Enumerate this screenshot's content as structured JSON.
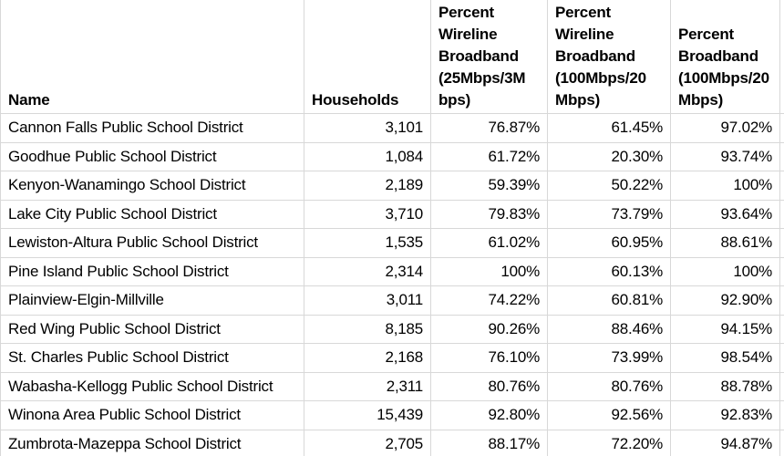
{
  "table": {
    "headers": {
      "name": "Name",
      "households": "Households",
      "pct_wireline_25_3": "Percent\nWireline\nBroadband\n(25Mbps/3M\nbps)",
      "pct_wireline_100_20": "Percent\nWireline\nBroadband\n(100Mbps/20\nMbps)",
      "pct_broadband_100_20": "Percent\nBroadband\n(100Mbps/20\nMbps)"
    },
    "rows": [
      {
        "name": "Cannon Falls Public School District",
        "households": "3,101",
        "pct_wireline_25_3": "76.87%",
        "pct_wireline_100_20": "61.45%",
        "pct_broadband_100_20": "97.02%"
      },
      {
        "name": "Goodhue Public School District",
        "households": "1,084",
        "pct_wireline_25_3": "61.72%",
        "pct_wireline_100_20": "20.30%",
        "pct_broadband_100_20": "93.74%"
      },
      {
        "name": "Kenyon-Wanamingo School District",
        "households": "2,189",
        "pct_wireline_25_3": "59.39%",
        "pct_wireline_100_20": "50.22%",
        "pct_broadband_100_20": "100%"
      },
      {
        "name": "Lake City Public School District",
        "households": "3,710",
        "pct_wireline_25_3": "79.83%",
        "pct_wireline_100_20": "73.79%",
        "pct_broadband_100_20": "93.64%"
      },
      {
        "name": "Lewiston-Altura Public School District",
        "households": "1,535",
        "pct_wireline_25_3": "61.02%",
        "pct_wireline_100_20": "60.95%",
        "pct_broadband_100_20": "88.61%"
      },
      {
        "name": "Pine Island Public School District",
        "households": "2,314",
        "pct_wireline_25_3": "100%",
        "pct_wireline_100_20": "60.13%",
        "pct_broadband_100_20": "100%"
      },
      {
        "name": "Plainview-Elgin-Millville",
        "households": "3,011",
        "pct_wireline_25_3": "74.22%",
        "pct_wireline_100_20": "60.81%",
        "pct_broadband_100_20": "92.90%"
      },
      {
        "name": "Red Wing Public School District",
        "households": "8,185",
        "pct_wireline_25_3": "90.26%",
        "pct_wireline_100_20": "88.46%",
        "pct_broadband_100_20": "94.15%"
      },
      {
        "name": "St. Charles Public School District",
        "households": "2,168",
        "pct_wireline_25_3": "76.10%",
        "pct_wireline_100_20": "73.99%",
        "pct_broadband_100_20": "98.54%"
      },
      {
        "name": "Wabasha-Kellogg Public School District",
        "households": "2,311",
        "pct_wireline_25_3": "80.76%",
        "pct_wireline_100_20": "80.76%",
        "pct_broadband_100_20": "88.78%"
      },
      {
        "name": "Winona Area Public School District",
        "households": "15,439",
        "pct_wireline_25_3": "92.80%",
        "pct_wireline_100_20": "92.56%",
        "pct_broadband_100_20": "92.83%"
      },
      {
        "name": "Zumbrota-Mazeppa School District",
        "households": "2,705",
        "pct_wireline_25_3": "88.17%",
        "pct_wireline_100_20": "72.20%",
        "pct_broadband_100_20": "94.87%"
      }
    ]
  },
  "colors": {
    "gridline": "#d8d8d8",
    "text": "#000000",
    "background": "#ffffff"
  }
}
